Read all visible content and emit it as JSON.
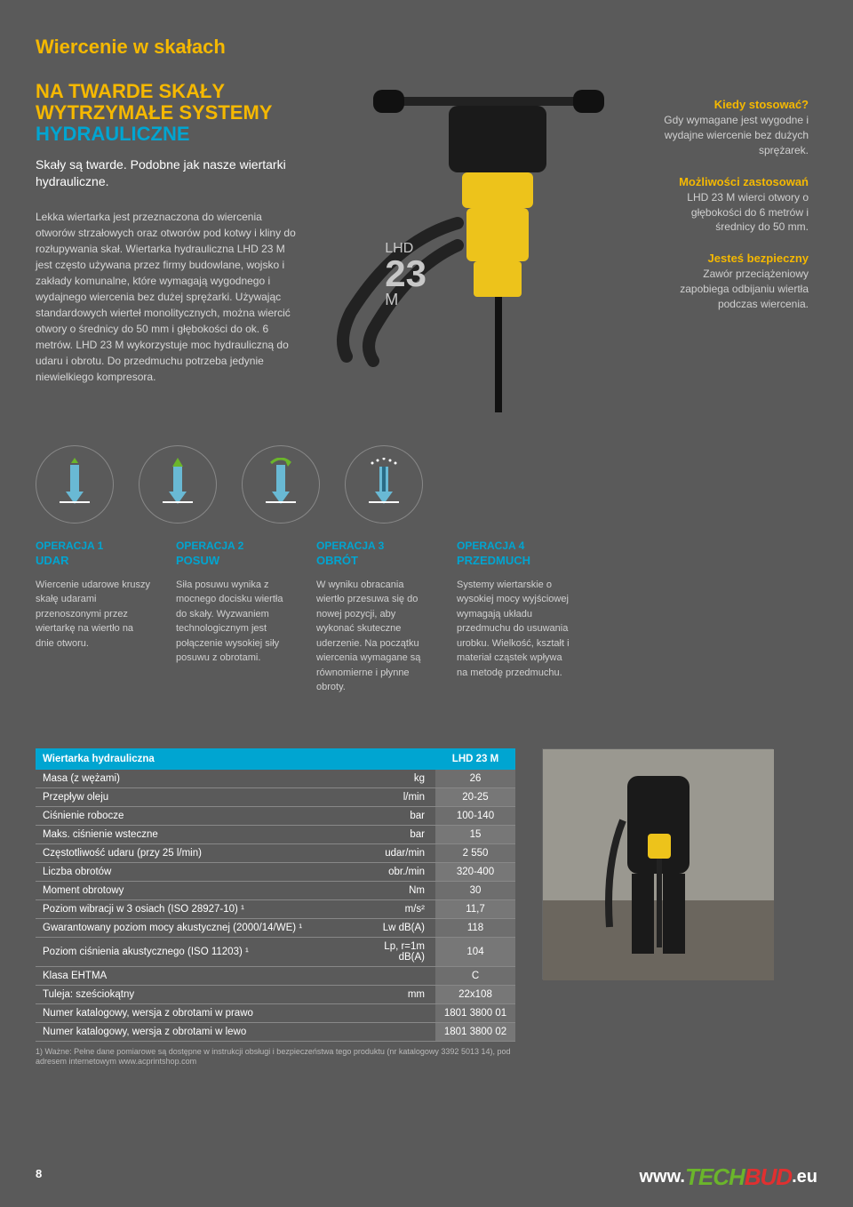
{
  "header": {
    "title": "Wiercenie w skałach"
  },
  "left": {
    "line1": "NA TWARDE SKAŁY",
    "line2": "WYTRZYMAŁE SYSTEMY",
    "line3": "HYDRAULICZNE",
    "intro": "Skały są twarde. Podobne jak nasze wiertarki hydrauliczne.",
    "body": "Lekka wiertarka jest przeznaczona do wiercenia otworów strzałowych oraz otworów pod kotwy i kliny do rozłupywania skał. Wiertarka hydrauliczna LHD 23 M jest często używana przez firmy budowlane, wojsko i zakłady komunalne, które wymagają wygodnego i wydajnego wiercenia bez dużej sprężarki. Używając standardowych wierteł monolitycznych, można wiercić otwory o średnicy do 50 mm i głębokości do ok. 6 metrów. LHD 23 M wykorzystuje moc hydrauliczną do udaru i obrotu. Do przedmuchu potrzeba jedynie niewielkiego kompresora."
  },
  "product": {
    "l1": "LHD",
    "l2": "23",
    "l3": "M"
  },
  "right": {
    "h1": "Kiedy stosować?",
    "t1": "Gdy wymagane jest wygodne i wydajne wiercenie bez dużych sprężarek.",
    "h2": "Możliwości zastosowań",
    "t2": "LHD 23 M wierci otwory o głębokości do 6 metrów i średnicy do 50 mm.",
    "h3": "Jesteś bezpieczny",
    "t3": "Zawór przeciążeniowy zapobiega odbijaniu wiertła podczas wiercenia."
  },
  "ops": [
    {
      "n": "OPERACJA 1",
      "s": "UDAR",
      "t": "Wiercenie udarowe kruszy skałę udarami przenoszonymi przez wiertarkę na wiertło na dnie otworu."
    },
    {
      "n": "OPERACJA 2",
      "s": "POSUW",
      "t": "Siła posuwu wynika z mocnego docisku wiertła do skały. Wyzwaniem technologicznym jest połączenie wysokiej siły posuwu z obrotami."
    },
    {
      "n": "OPERACJA 3",
      "s": "OBRÓT",
      "t": "W wyniku obracania wiertło przesuwa się do nowej pozycji, aby wykonać skuteczne uderzenie. Na początku wiercenia wymagane są równomierne i płynne obroty."
    },
    {
      "n": "OPERACJA 4",
      "s": "PRZEDMUCH",
      "t": "Systemy wiertarskie o wysokiej mocy wyjściowej wymagają układu przedmuchu do usuwania urobku. Wielkość, kształt i materiał cząstek wpływa na metodę przedmuchu."
    }
  ],
  "table": {
    "title": "Wiertarka hydrauliczna",
    "model": "LHD 23 M",
    "rows": [
      {
        "p": "Masa (z wężami)",
        "u": "kg",
        "v": "26"
      },
      {
        "p": "Przepływ oleju",
        "u": "l/min",
        "v": "20-25"
      },
      {
        "p": "Ciśnienie robocze",
        "u": "bar",
        "v": "100-140"
      },
      {
        "p": "Maks. ciśnienie wsteczne",
        "u": "bar",
        "v": "15"
      },
      {
        "p": "Częstotliwość udaru (przy 25 l/min)",
        "u": "udar/min",
        "v": "2 550"
      },
      {
        "p": "Liczba obrotów",
        "u": "obr./min",
        "v": "320-400"
      },
      {
        "p": "Moment obrotowy",
        "u": "Nm",
        "v": "30"
      },
      {
        "p": "Poziom wibracji w 3 osiach (ISO 28927-10) ¹",
        "u": "m/s²",
        "v": "11,7"
      },
      {
        "p": "Gwarantowany poziom mocy akustycznej (2000/14/WE) ¹",
        "u": "Lw dB(A)",
        "v": "118"
      },
      {
        "p": "Poziom ciśnienia akustycznego (ISO 11203) ¹",
        "u": "Lp, r=1m dB(A)",
        "v": "104"
      },
      {
        "p": "Klasa EHTMA",
        "u": "",
        "v": "C"
      },
      {
        "p": "Tuleja: sześciokątny",
        "u": "mm",
        "v": "22x108"
      },
      {
        "p": "Numer katalogowy, wersja z obrotami w prawo",
        "u": "",
        "v": "1801 3800 01"
      },
      {
        "p": "Numer katalogowy, wersja z obrotami w lewo",
        "u": "",
        "v": "1801 3800 02"
      }
    ],
    "footnote": "1) Ważne: Pełne dane pomiarowe są dostępne w instrukcji obsługi i bezpieczeństwa tego produktu (nr katalogowy 3392 5013 14), pod adresem internetowym www.acprintshop.com"
  },
  "pagenum": "8",
  "footer": {
    "www": "www.",
    "a": "TECH",
    "b": "BUD",
    "eu": ".eu"
  },
  "colors": {
    "accent_yellow": "#f5b800",
    "accent_blue": "#00a5d1",
    "bg": "#5a5a5a",
    "drill_yellow": "#edc31b",
    "drill_black": "#1a1a1a"
  }
}
